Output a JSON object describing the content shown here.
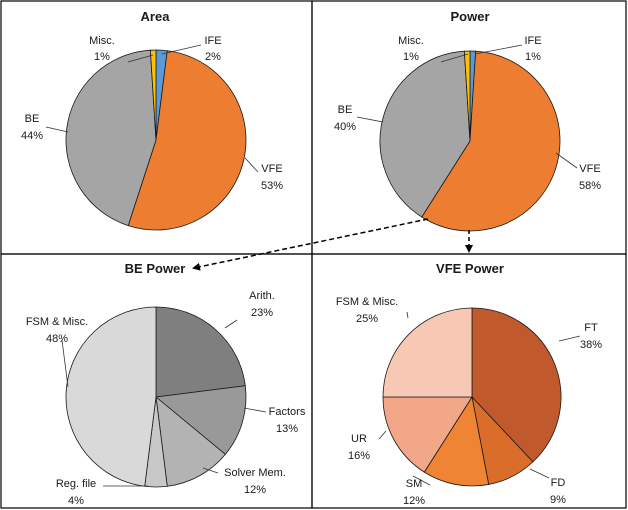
{
  "chart_data": [
    {
      "type": "pie",
      "title": "Area",
      "slices": [
        {
          "name": "IFE",
          "pct_label": "2%",
          "value": 2,
          "color": "#5b9bd5"
        },
        {
          "name": "VFE",
          "pct_label": "53%",
          "value": 53,
          "color": "#ed7d31"
        },
        {
          "name": "BE",
          "pct_label": "44%",
          "value": 44,
          "color": "#a5a5a5"
        },
        {
          "name": "Misc.",
          "pct_label": "1%",
          "value": 1,
          "color": "#ffc000"
        }
      ]
    },
    {
      "type": "pie",
      "title": "Power",
      "slices": [
        {
          "name": "IFE",
          "pct_label": "1%",
          "value": 1,
          "color": "#5b9bd5"
        },
        {
          "name": "VFE",
          "pct_label": "58%",
          "value": 58,
          "color": "#ed7d31"
        },
        {
          "name": "BE",
          "pct_label": "40%",
          "value": 40,
          "color": "#a5a5a5"
        },
        {
          "name": "Misc.",
          "pct_label": "1%",
          "value": 1,
          "color": "#ffc000"
        }
      ]
    },
    {
      "type": "pie",
      "title": "BE Power",
      "slices": [
        {
          "name": "Arith.",
          "pct_label": "23%",
          "value": 23,
          "color": "#7f7f7f"
        },
        {
          "name": "Factors",
          "pct_label": "13%",
          "value": 13,
          "color": "#999999"
        },
        {
          "name": "Solver Mem.",
          "pct_label": "12%",
          "value": 12,
          "color": "#b3b3b3"
        },
        {
          "name": "Reg. file",
          "pct_label": "4%",
          "value": 4,
          "color": "#c8c8c8"
        },
        {
          "name": "FSM & Misc.",
          "pct_label": "48%",
          "value": 48,
          "color": "#d9d9d9"
        }
      ]
    },
    {
      "type": "pie",
      "title": "VFE Power",
      "slices": [
        {
          "name": "FT",
          "pct_label": "38%",
          "value": 38,
          "color": "#c0592b"
        },
        {
          "name": "FD",
          "pct_label": "9%",
          "value": 9,
          "color": "#da6d2a"
        },
        {
          "name": "SM",
          "pct_label": "12%",
          "value": 12,
          "color": "#ef8434"
        },
        {
          "name": "UR",
          "pct_label": "16%",
          "value": 16,
          "color": "#f2a888"
        },
        {
          "name": "FSM & Misc.",
          "pct_label": "25%",
          "value": 25,
          "color": "#f7c9b4"
        }
      ]
    }
  ]
}
